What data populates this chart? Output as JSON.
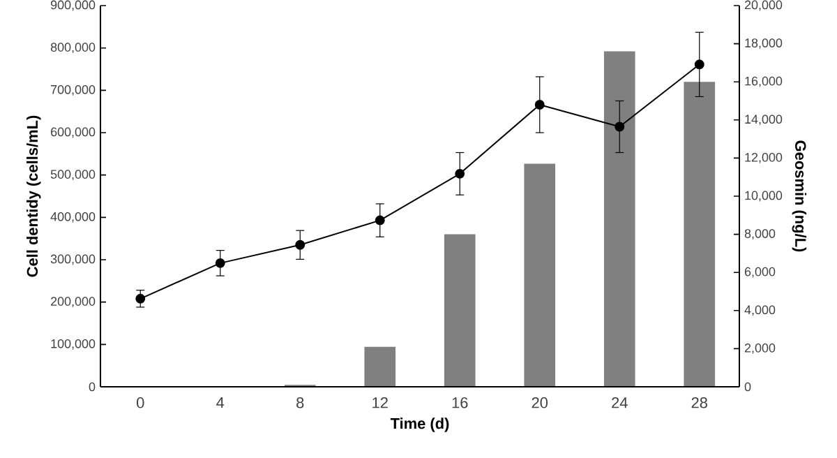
{
  "chart_data": {
    "type": "bar",
    "xlabel": "Time (d)",
    "ylabel": "Cell dentidy (cells/mL)",
    "y2label": "Geosmin (ng/L)",
    "categories": [
      "0",
      "4",
      "8",
      "12",
      "16",
      "20",
      "24",
      "28"
    ],
    "series": [
      {
        "axis": "y2",
        "color": "#808080",
        "values": [
          0,
          0,
          100,
          2100,
          8000,
          11700,
          17600,
          16000
        ]
      },
      {
        "type": "line",
        "axis": "y",
        "color": "#000000",
        "marker": "circle",
        "line_style": "solid",
        "values": [
          208000,
          292000,
          335000,
          393000,
          503000,
          666000,
          614000,
          761000
        ],
        "errors": [
          20000,
          30000,
          34000,
          39000,
          50000,
          66000,
          61000,
          76000
        ]
      }
    ],
    "ylim": [
      0,
      900000
    ],
    "yticks": [
      {
        "value": 0,
        "label": "0"
      },
      {
        "value": 100000,
        "label": "100,000"
      },
      {
        "value": 200000,
        "label": "200,000"
      },
      {
        "value": 300000,
        "label": "300,000"
      },
      {
        "value": 400000,
        "label": "400,000"
      },
      {
        "value": 500000,
        "label": "500,000"
      },
      {
        "value": 600000,
        "label": "600,000"
      },
      {
        "value": 700000,
        "label": "700,000"
      },
      {
        "value": 800000,
        "label": "800,000"
      },
      {
        "value": 900000,
        "label": "900,000"
      }
    ],
    "y2lim": [
      0,
      20000
    ],
    "y2ticks": [
      {
        "value": 0,
        "label": "0"
      },
      {
        "value": 2000,
        "label": "2,000"
      },
      {
        "value": 4000,
        "label": "4,000"
      },
      {
        "value": 6000,
        "label": "6,000"
      },
      {
        "value": 8000,
        "label": "8,000"
      },
      {
        "value": 10000,
        "label": "10,000"
      },
      {
        "value": 12000,
        "label": "12,000"
      },
      {
        "value": 14000,
        "label": "14,000"
      },
      {
        "value": 16000,
        "label": "16,000"
      },
      {
        "value": 18000,
        "label": "18,000"
      },
      {
        "value": 20000,
        "label": "20,000"
      }
    ]
  }
}
